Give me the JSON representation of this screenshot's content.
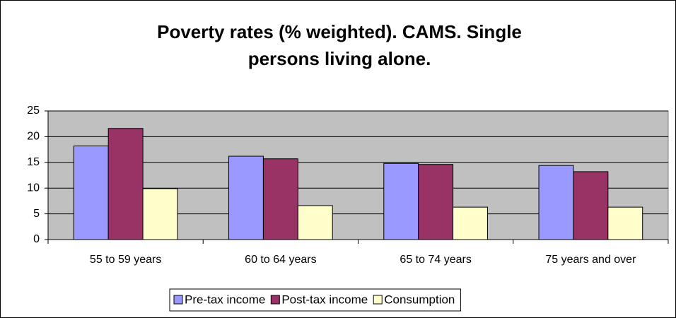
{
  "chart_data": {
    "type": "bar",
    "title": [
      "Poverty rates (% weighted).  CAMS. Single",
      "persons living alone."
    ],
    "categories": [
      "55 to 59 years",
      "60 to 64 years",
      "65 to 74 years",
      "75 years and over"
    ],
    "series": [
      {
        "name": "Pre-tax income",
        "color": "#9999ff",
        "values": [
          18.2,
          16.2,
          14.8,
          14.4
        ]
      },
      {
        "name": "Post-tax income",
        "color": "#993366",
        "values": [
          21.6,
          15.7,
          14.6,
          13.2
        ]
      },
      {
        "name": "Consumption",
        "color": "#ffffcc",
        "values": [
          9.9,
          6.6,
          6.3,
          6.3
        ]
      }
    ],
    "ylim": [
      0,
      25
    ],
    "yticks": [
      0,
      5,
      10,
      15,
      20,
      25
    ],
    "grid": true
  }
}
